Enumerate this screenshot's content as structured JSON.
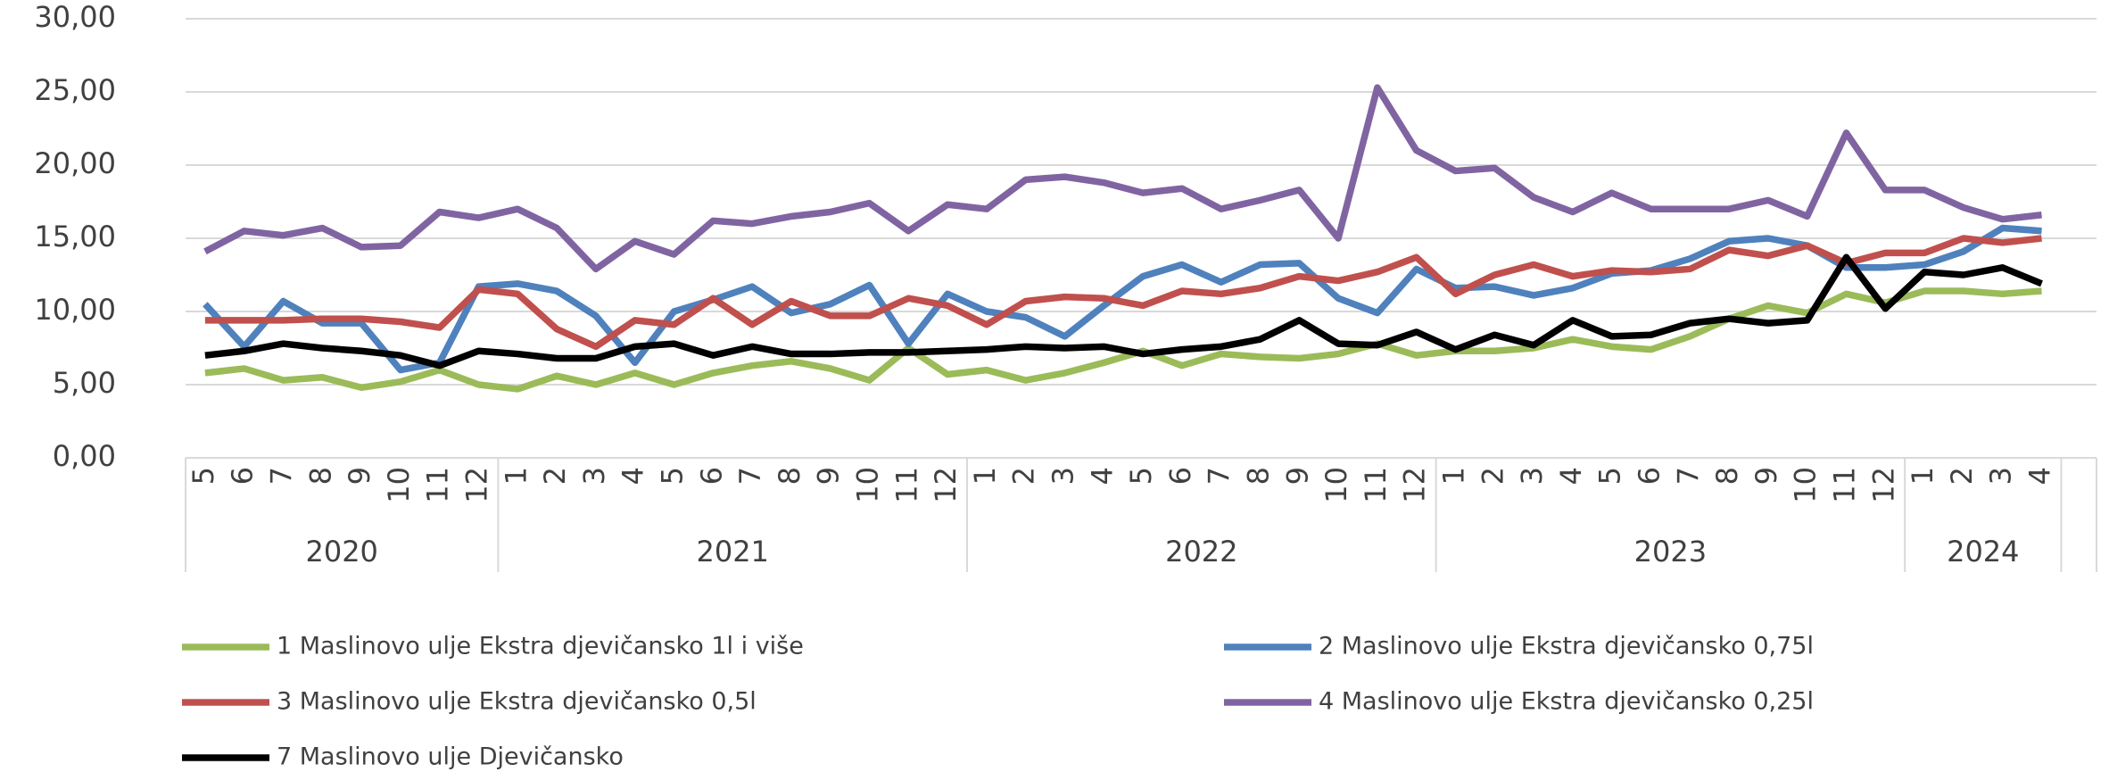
{
  "chart_data": {
    "type": "line",
    "groups": [
      {
        "label": "2020",
        "categories": [
          "5",
          "6",
          "7",
          "8",
          "9",
          "10",
          "11",
          "12"
        ]
      },
      {
        "label": "2021",
        "categories": [
          "1",
          "2",
          "3",
          "4",
          "5",
          "6",
          "7",
          "8",
          "9",
          "10",
          "11",
          "12"
        ]
      },
      {
        "label": "2022",
        "categories": [
          "1",
          "2",
          "3",
          "4",
          "5",
          "6",
          "7",
          "8",
          "9",
          "10",
          "11",
          "12"
        ]
      },
      {
        "label": "2023",
        "categories": [
          "1",
          "2",
          "3",
          "4",
          "5",
          "6",
          "7",
          "8",
          "9",
          "10",
          "11",
          "12"
        ]
      },
      {
        "label": "2024",
        "categories": [
          "1",
          "2",
          "3",
          "4"
        ]
      }
    ],
    "ylim": [
      0,
      30
    ],
    "yticks": [
      {
        "value": 0,
        "label": "0,00"
      },
      {
        "value": 5,
        "label": "5,00"
      },
      {
        "value": 10,
        "label": "10,00"
      },
      {
        "value": 15,
        "label": "15,00"
      },
      {
        "value": 20,
        "label": "20,00"
      },
      {
        "value": 25,
        "label": "25,00"
      },
      {
        "value": 30,
        "label": "30,00"
      }
    ],
    "grid": true,
    "legend": "bottom",
    "series": [
      {
        "name": "1 Maslinovo ulje Ekstra djevičansko 1l i više",
        "color": "#9bbb59",
        "values": [
          5.8,
          6.1,
          5.3,
          5.5,
          4.8,
          5.2,
          6.0,
          5.0,
          4.7,
          5.6,
          5.0,
          5.8,
          5.0,
          5.8,
          6.3,
          6.6,
          6.1,
          5.3,
          7.5,
          5.7,
          6.0,
          5.3,
          5.8,
          6.5,
          7.3,
          6.3,
          7.1,
          6.9,
          6.8,
          7.1,
          7.8,
          7.0,
          7.3,
          7.3,
          7.5,
          8.1,
          7.6,
          7.4,
          8.3,
          9.5,
          10.4,
          9.9,
          11.2,
          10.6,
          11.4,
          11.4,
          11.2,
          11.4
        ]
      },
      {
        "name": "2 Maslinovo ulje Ekstra djevičansko 0,75l",
        "color": "#4f81bd",
        "values": [
          10.5,
          7.6,
          10.7,
          9.2,
          9.2,
          6.0,
          6.5,
          11.7,
          11.9,
          11.4,
          9.7,
          6.5,
          10.0,
          10.8,
          11.7,
          9.9,
          10.5,
          11.8,
          7.8,
          11.2,
          10.0,
          9.6,
          8.3,
          10.4,
          12.4,
          13.2,
          12.0,
          13.2,
          13.3,
          10.9,
          9.9,
          12.9,
          11.6,
          11.7,
          11.1,
          11.6,
          12.6,
          12.8,
          13.6,
          14.8,
          15.0,
          14.5,
          13.0,
          13.0,
          13.2,
          14.1,
          15.7,
          15.5
        ]
      },
      {
        "name": "3 Maslinovo ulje Ekstra djevičansko 0,5l",
        "color": "#c0504d",
        "values": [
          9.4,
          9.4,
          9.4,
          9.5,
          9.5,
          9.3,
          8.9,
          11.5,
          11.2,
          8.8,
          7.6,
          9.4,
          9.1,
          10.9,
          9.1,
          10.7,
          9.7,
          9.7,
          10.9,
          10.4,
          9.1,
          10.7,
          11.0,
          10.9,
          10.4,
          11.4,
          11.2,
          11.6,
          12.4,
          12.1,
          12.7,
          13.7,
          11.2,
          12.5,
          13.2,
          12.4,
          12.8,
          12.7,
          12.9,
          14.2,
          13.8,
          14.5,
          13.3,
          14.0,
          14.0,
          15.0,
          14.7,
          15.0
        ]
      },
      {
        "name": "4 Maslinovo ulje Ekstra djevičansko 0,25l",
        "color": "#8064a2",
        "values": [
          14.1,
          15.5,
          15.2,
          15.7,
          14.4,
          14.5,
          16.8,
          16.4,
          17.0,
          15.7,
          12.9,
          14.8,
          13.9,
          16.2,
          16.0,
          16.5,
          16.8,
          17.4,
          15.5,
          17.3,
          17.0,
          19.0,
          19.2,
          18.8,
          18.1,
          18.4,
          17.0,
          17.6,
          18.3,
          15.0,
          25.3,
          21.0,
          19.6,
          19.8,
          17.8,
          16.8,
          18.1,
          17.0,
          17.0,
          17.0,
          17.6,
          16.5,
          22.2,
          18.3,
          18.3,
          17.1,
          16.3,
          16.6
        ]
      },
      {
        "name": "7 Maslinovo ulje Djevičansko",
        "color": "#000000",
        "values": [
          7.0,
          7.3,
          7.8,
          7.5,
          7.3,
          7.0,
          6.3,
          7.3,
          7.1,
          6.8,
          6.8,
          7.6,
          7.8,
          7.0,
          7.6,
          7.1,
          7.1,
          7.2,
          7.2,
          7.3,
          7.4,
          7.6,
          7.5,
          7.6,
          7.1,
          7.4,
          7.6,
          8.1,
          9.4,
          7.8,
          7.7,
          8.6,
          7.4,
          8.4,
          7.7,
          9.4,
          8.3,
          8.4,
          9.2,
          9.5,
          9.2,
          9.4,
          13.7,
          10.2,
          12.7,
          12.5,
          13.0,
          11.9
        ]
      }
    ]
  }
}
